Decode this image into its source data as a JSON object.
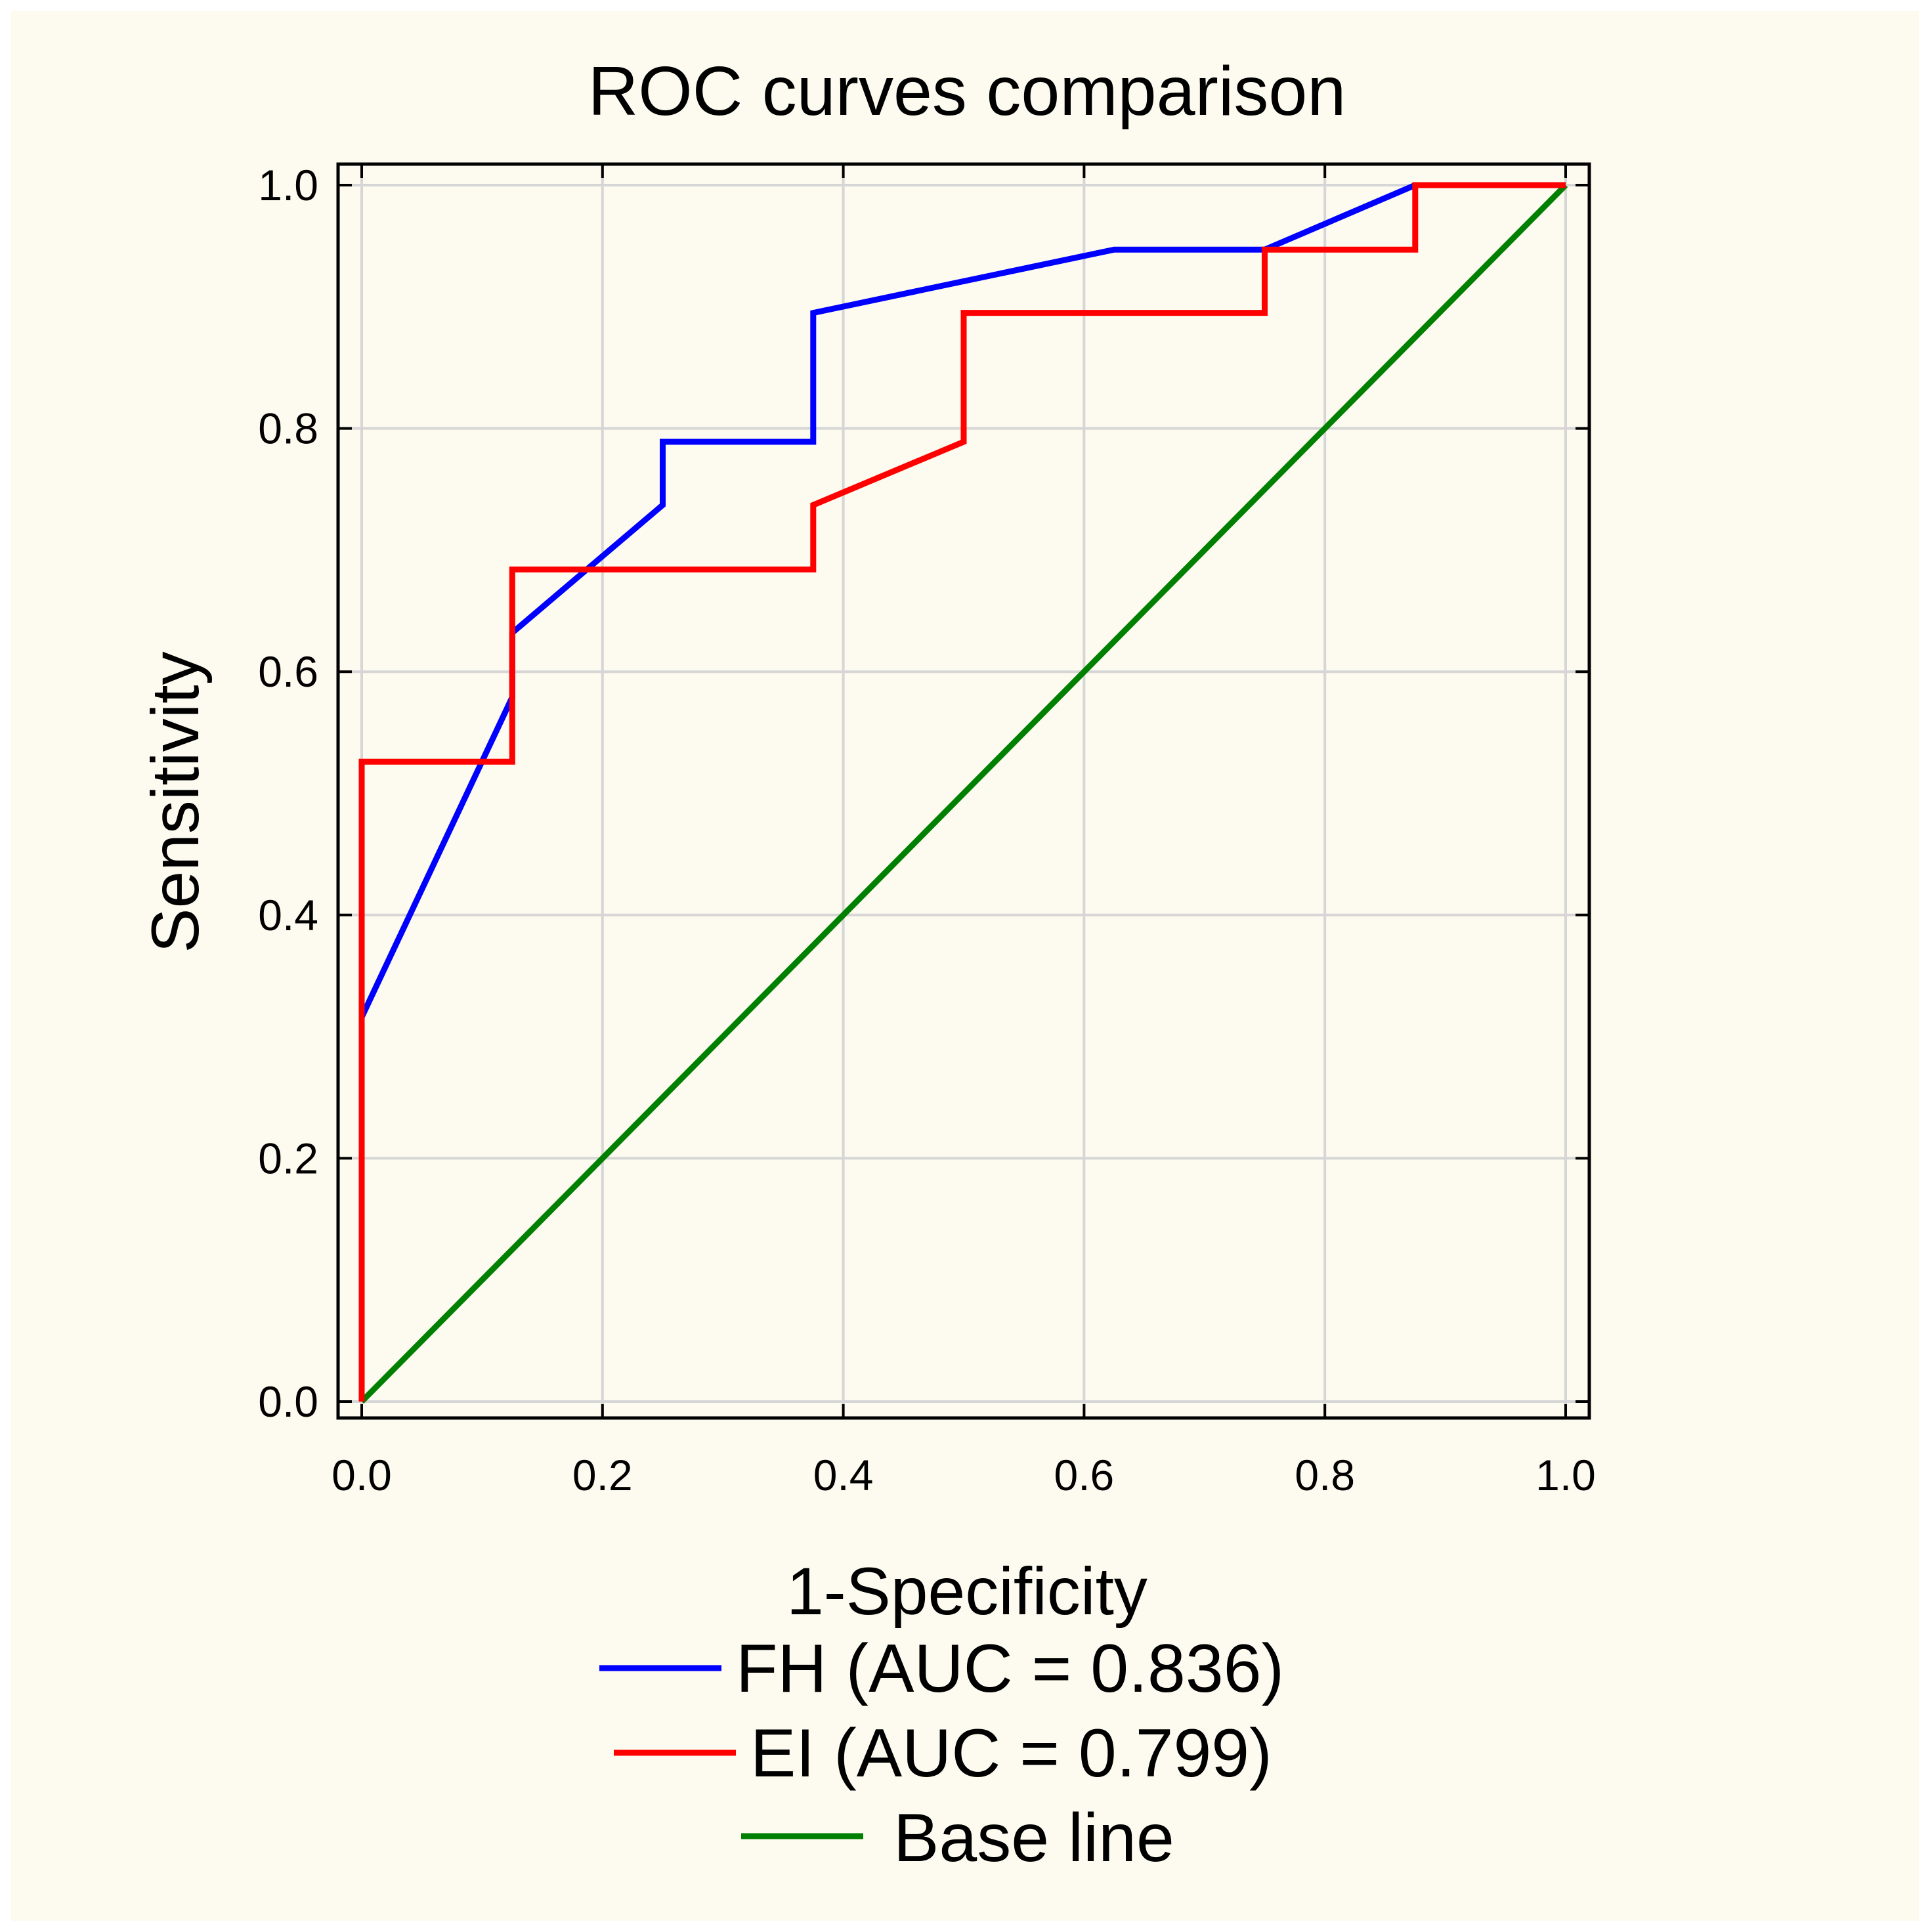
{
  "chart_data": {
    "type": "line",
    "title": "ROC curves comparison",
    "xlabel": "1-Specificity",
    "ylabel": "Sensitivity",
    "xlim": [
      0.0,
      1.0
    ],
    "ylim": [
      0.0,
      1.0
    ],
    "grid": true,
    "x_ticks": [
      "0.0",
      "0.2",
      "0.4",
      "0.6",
      "0.8",
      "1.0"
    ],
    "y_ticks": [
      "0.0",
      "0.2",
      "0.4",
      "0.6",
      "0.8",
      "1.0"
    ],
    "legend_position": "bottom",
    "series": [
      {
        "name": "FH (AUC = 0.836)",
        "color": "#0000ff",
        "x": [
          0.0,
          0.0,
          0.125,
          0.125,
          0.25,
          0.25,
          0.375,
          0.375,
          0.625,
          0.75,
          0.875,
          1.0
        ],
        "y": [
          0.0,
          0.316,
          0.579,
          0.632,
          0.737,
          0.789,
          0.789,
          0.895,
          0.947,
          0.947,
          1.0,
          1.0
        ]
      },
      {
        "name": "EI (AUC = 0.799)",
        "color": "#ff0000",
        "x": [
          0.0,
          0.0,
          0.125,
          0.125,
          0.375,
          0.375,
          0.5,
          0.5,
          0.75,
          0.75,
          0.875,
          0.875,
          1.0
        ],
        "y": [
          0.0,
          0.526,
          0.526,
          0.684,
          0.684,
          0.737,
          0.789,
          0.895,
          0.895,
          0.947,
          0.947,
          1.0,
          1.0
        ]
      },
      {
        "name": "Base line",
        "color": "#008000",
        "x": [
          0.0,
          1.0
        ],
        "y": [
          0.0,
          1.0
        ]
      }
    ]
  }
}
